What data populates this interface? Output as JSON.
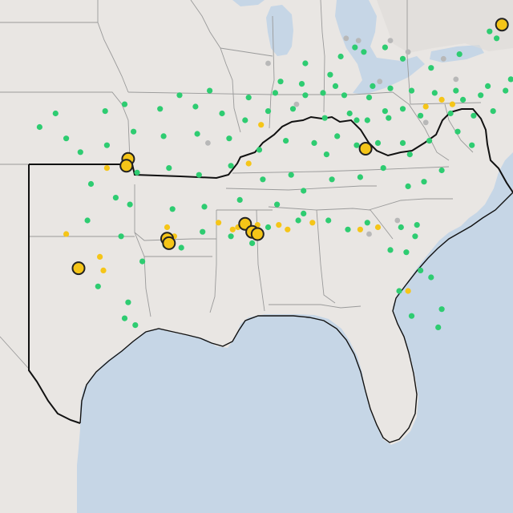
{
  "map": {
    "style": "light-gray-canvas",
    "colors": {
      "land": "#e9e6e3",
      "water": "#c6d6e6",
      "state_border": "#9a9a9a",
      "region_outline": "#111111",
      "good": "#2ecc71",
      "moderate": "#f5c518",
      "no_data": "#b8b8b8",
      "highlight_fill": "#f5c518",
      "highlight_stroke": "#222222"
    },
    "marker_categories": [
      "good",
      "moderate",
      "no_data",
      "highlight"
    ]
  },
  "markers": {
    "good": [
      [
        -94.9,
        36.1
      ],
      [
        -93.2,
        36.3
      ],
      [
        -91.0,
        36.0
      ],
      [
        -89.5,
        36.2
      ],
      [
        -87.8,
        36.1
      ],
      [
        -86.8,
        36.2
      ],
      [
        -85.6,
        36.1
      ],
      [
        -84.2,
        36.0
      ],
      [
        -83.0,
        36.4
      ],
      [
        -81.8,
        36.3
      ],
      [
        -80.5,
        36.2
      ],
      [
        -79.3,
        36.3
      ],
      [
        -77.9,
        36.1
      ],
      [
        -76.5,
        36.3
      ],
      [
        -96.0,
        35.5
      ],
      [
        -94.0,
        35.6
      ],
      [
        -92.5,
        35.3
      ],
      [
        -91.2,
        35.0
      ],
      [
        -89.9,
        35.4
      ],
      [
        -88.5,
        35.5
      ],
      [
        -86.7,
        35.1
      ],
      [
        -85.3,
        35.3
      ],
      [
        -84.3,
        35.0
      ],
      [
        -83.3,
        35.4
      ],
      [
        -82.3,
        35.5
      ],
      [
        -81.3,
        35.2
      ],
      [
        -79.6,
        35.3
      ],
      [
        -78.3,
        35.2
      ],
      [
        -77.2,
        35.4
      ],
      [
        -95.8,
        34.3
      ],
      [
        -93.9,
        34.4
      ],
      [
        -92.1,
        34.2
      ],
      [
        -90.4,
        33.7
      ],
      [
        -88.9,
        34.1
      ],
      [
        -87.3,
        34.0
      ],
      [
        -86.0,
        34.3
      ],
      [
        -84.9,
        33.9
      ],
      [
        -83.7,
        34.0
      ],
      [
        -82.3,
        34.0
      ],
      [
        -80.8,
        34.1
      ],
      [
        -79.2,
        34.5
      ],
      [
        -78.4,
        33.9
      ],
      [
        -97.3,
        32.7
      ],
      [
        -95.5,
        32.9
      ],
      [
        -93.8,
        32.6
      ],
      [
        -92.0,
        33.0
      ],
      [
        -90.2,
        32.4
      ],
      [
        -88.6,
        32.6
      ],
      [
        -86.3,
        32.4
      ],
      [
        -84.7,
        32.5
      ],
      [
        -83.4,
        32.9
      ],
      [
        -82.0,
        32.1
      ],
      [
        -81.1,
        32.3
      ],
      [
        -80.1,
        32.8
      ],
      [
        -97.7,
        31.3
      ],
      [
        -95.3,
        31.1
      ],
      [
        -93.5,
        31.2
      ],
      [
        -91.5,
        31.5
      ],
      [
        -89.4,
        31.3
      ],
      [
        -87.9,
        30.9
      ],
      [
        -86.5,
        30.6
      ],
      [
        -84.3,
        30.5
      ],
      [
        -82.4,
        30.3
      ],
      [
        -81.5,
        30.4
      ],
      [
        -81.6,
        29.9
      ],
      [
        -97.0,
        28.8
      ],
      [
        -95.7,
        29.5
      ],
      [
        -94.8,
        29.4
      ],
      [
        -93.6,
        30.1
      ],
      [
        -92.0,
        29.9
      ],
      [
        -90.8,
        29.6
      ],
      [
        -89.9,
        30.3
      ],
      [
        -88.2,
        30.6
      ],
      [
        -85.4,
        30.2
      ],
      [
        -83.0,
        29.3
      ],
      [
        -82.1,
        29.2
      ],
      [
        -81.3,
        28.4
      ],
      [
        -80.7,
        28.1
      ],
      [
        -82.5,
        27.5
      ],
      [
        -81.8,
        26.4
      ],
      [
        -80.3,
        25.9
      ],
      [
        -80.1,
        26.7
      ],
      [
        -97.8,
        27.0
      ],
      [
        -99.1,
        35.4
      ],
      [
        -98.0,
        35.7
      ],
      [
        -97.5,
        34.5
      ],
      [
        -99.0,
        33.9
      ],
      [
        -100.5,
        33.6
      ],
      [
        -101.9,
        35.3
      ],
      [
        -102.8,
        34.7
      ],
      [
        -101.3,
        34.2
      ],
      [
        -99.9,
        32.2
      ],
      [
        -98.5,
        31.6
      ],
      [
        -100.1,
        30.6
      ],
      [
        -98.2,
        29.9
      ],
      [
        -99.5,
        27.7
      ],
      [
        -98.0,
        26.3
      ],
      [
        -97.4,
        26.0
      ],
      [
        -84.5,
        38.0
      ],
      [
        -83.3,
        38.2
      ],
      [
        -82.3,
        37.7
      ],
      [
        -80.7,
        37.3
      ],
      [
        -79.1,
        37.9
      ],
      [
        -77.4,
        38.9
      ],
      [
        -76.6,
        39.2
      ],
      [
        -77.0,
        38.6
      ],
      [
        -75.9,
        37.6
      ],
      [
        -85.8,
        37.8
      ],
      [
        -86.4,
        37.0
      ],
      [
        -87.8,
        37.5
      ],
      [
        -89.2,
        36.7
      ],
      [
        -88.0,
        36.6
      ],
      [
        -86.1,
        36.5
      ],
      [
        -84.0,
        36.5
      ],
      [
        -85.0,
        38.2
      ],
      [
        -76.2,
        36.8
      ],
      [
        -77.5,
        36.5
      ],
      [
        -78.9,
        35.9
      ],
      [
        -81.9,
        33.5
      ],
      [
        -83.1,
        35.1
      ],
      [
        -84.9,
        35.0
      ],
      [
        -87.9,
        31.9
      ],
      [
        -86.6,
        33.5
      ]
    ],
    "moderate": [
      [
        -101.3,
        30.0
      ],
      [
        -99.4,
        29.0
      ],
      [
        -99.2,
        28.4
      ],
      [
        -92.7,
        30.5
      ],
      [
        -91.9,
        30.2
      ],
      [
        -91.6,
        30.3
      ],
      [
        -90.5,
        30.4
      ],
      [
        -89.3,
        30.4
      ],
      [
        -88.8,
        30.2
      ],
      [
        -87.4,
        30.5
      ],
      [
        -84.7,
        30.2
      ],
      [
        -83.7,
        30.3
      ],
      [
        -82.0,
        27.5
      ],
      [
        -91.0,
        33.1
      ],
      [
        -90.3,
        34.8
      ],
      [
        -81.0,
        35.6
      ],
      [
        -80.1,
        35.9
      ],
      [
        -79.5,
        35.7
      ],
      [
        -95.6,
        30.3
      ],
      [
        -99.0,
        32.9
      ],
      [
        -95.2,
        29.9
      ]
    ],
    "no_data": [
      [
        -85.5,
        38.6
      ],
      [
        -84.8,
        38.5
      ],
      [
        -83.0,
        38.5
      ],
      [
        -82.0,
        38.0
      ],
      [
        -80.0,
        37.7
      ],
      [
        -89.9,
        37.5
      ],
      [
        -88.3,
        35.7
      ],
      [
        -93.3,
        34.0
      ],
      [
        -84.2,
        30.0
      ],
      [
        -82.6,
        30.6
      ],
      [
        -81.0,
        34.9
      ],
      [
        -83.6,
        36.7
      ],
      [
        -79.3,
        36.8
      ]
    ],
    "highlight": [
      [
        -76.7,
        39.2
      ],
      [
        -84.4,
        33.75
      ],
      [
        -97.8,
        33.3
      ],
      [
        -97.9,
        33.0
      ],
      [
        -95.6,
        29.8
      ],
      [
        -95.5,
        29.6
      ],
      [
        -91.2,
        30.45
      ],
      [
        -90.8,
        30.1
      ],
      [
        -90.5,
        30.0
      ],
      [
        -100.6,
        28.5
      ]
    ]
  }
}
